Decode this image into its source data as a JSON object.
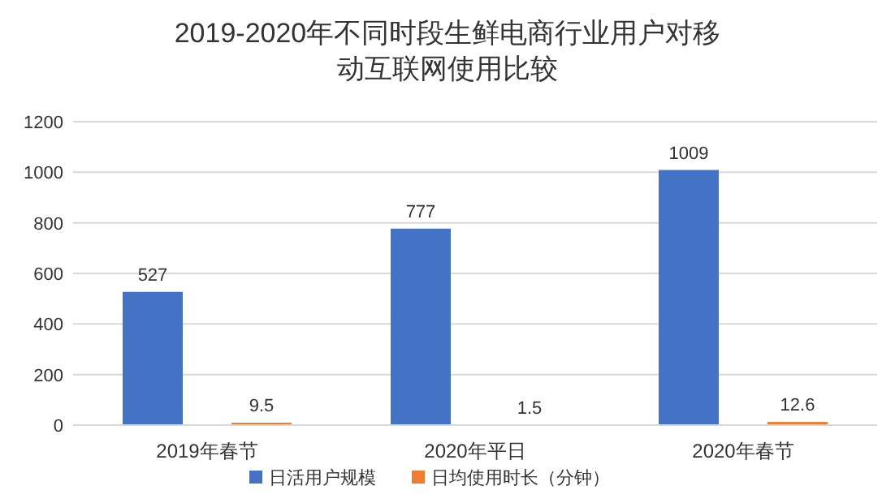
{
  "chart_data": {
    "type": "bar",
    "title": "2019-2020年不同时段生鲜电商行业用户对移动互联网使用比较",
    "categories": [
      "2019年春节",
      "2020年平日",
      "2020年春节"
    ],
    "series": [
      {
        "name": "日活用户规模",
        "color": "#4472c4",
        "values": [
          527,
          777,
          1009
        ]
      },
      {
        "name": "日均使用时长（分钟）",
        "color": "#ed7d31",
        "values": [
          9.5,
          1.5,
          12.6
        ]
      }
    ],
    "ylim": [
      0,
      1200
    ],
    "yticks": [
      0,
      200,
      400,
      600,
      800,
      1000,
      1200
    ],
    "grid": "y",
    "legend": "bottom",
    "data_labels": true
  }
}
